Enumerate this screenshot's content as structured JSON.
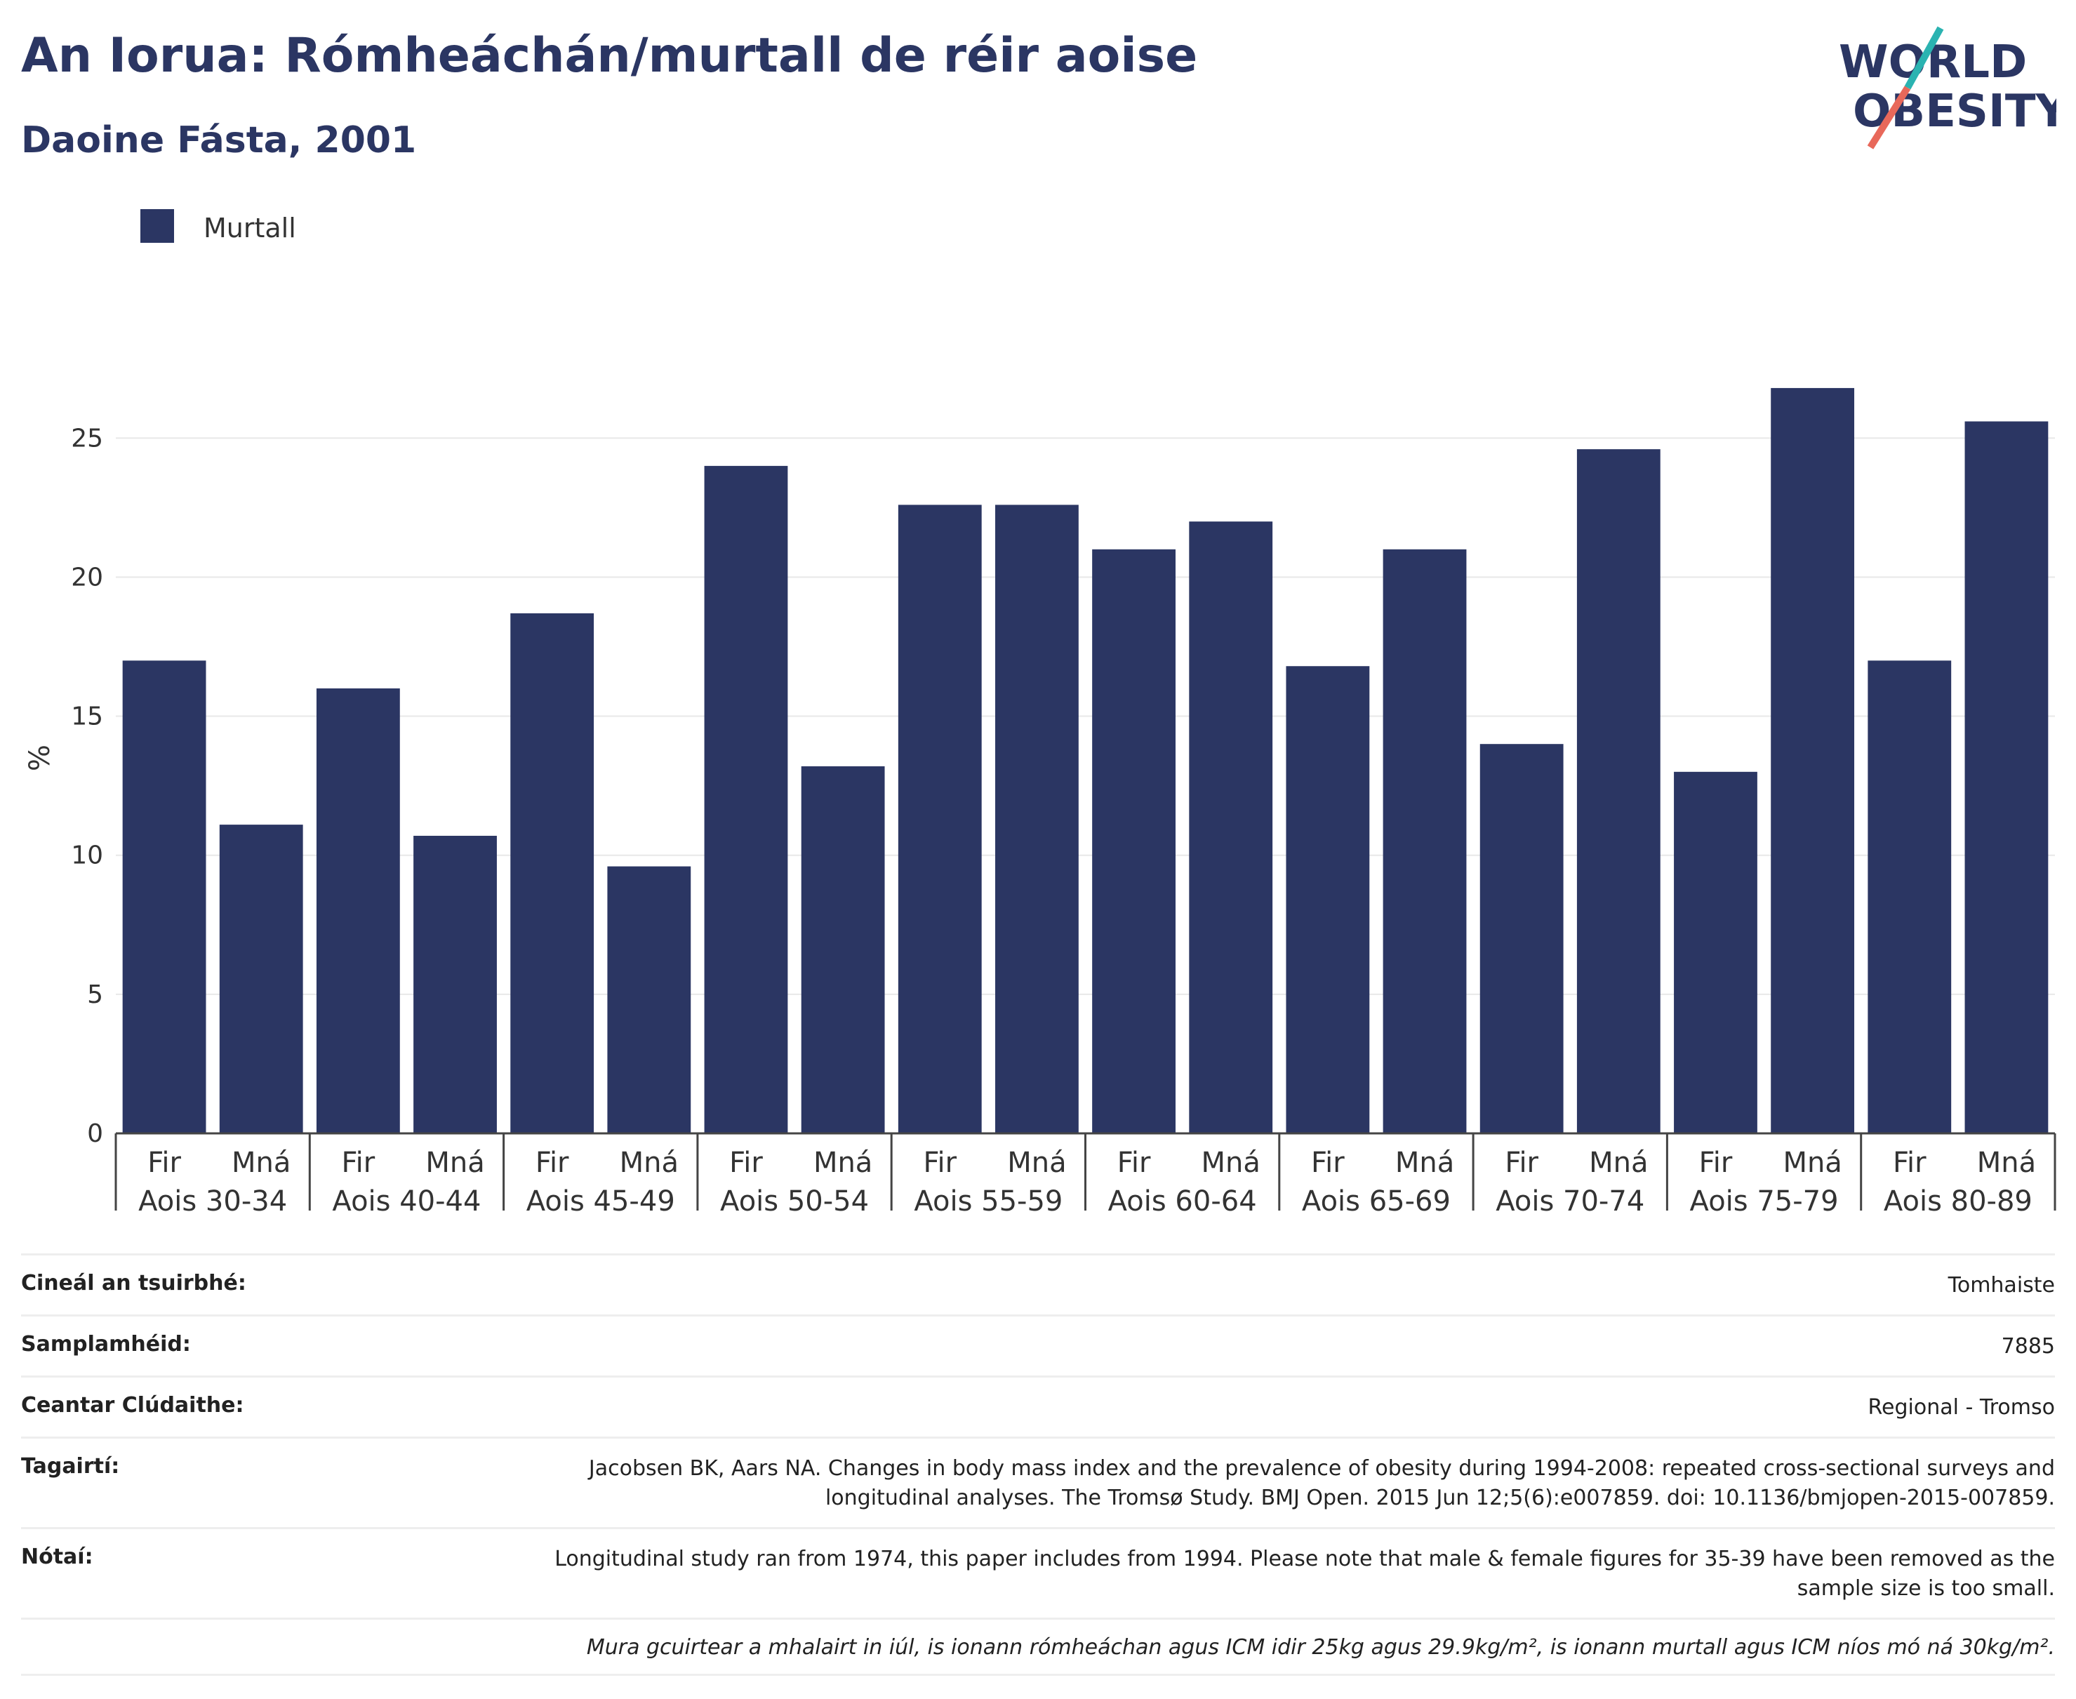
{
  "title": "An Iorua: Rómheáchán/murtall de réir aoise",
  "subtitle": "Daoine Fásta, 2001",
  "logo": {
    "line1": "WORLD",
    "line2": "OBESITY",
    "teal": "#2bb3b1",
    "coral": "#e8685a",
    "navy": "#2b3663"
  },
  "chart_data": {
    "type": "bar",
    "title": "An Iorua: Rómheáchán/murtall de réir aoise",
    "subtitle": "Daoine Fásta, 2001",
    "ylabel": "%",
    "xlabel": "",
    "ylim": [
      0,
      27
    ],
    "yticks": [
      0,
      5,
      10,
      15,
      20,
      25
    ],
    "grid": true,
    "legend_position": "top-left",
    "bar_color": "#2b3663",
    "groups": [
      "Aois 30-34",
      "Aois 40-44",
      "Aois 45-49",
      "Aois 50-54",
      "Aois 55-59",
      "Aois 60-64",
      "Aois 65-69",
      "Aois 70-74",
      "Aois 75-79",
      "Aois 80-89"
    ],
    "subcategories": [
      "Fir",
      "Mná"
    ],
    "series": [
      {
        "name": "Murtall",
        "values": [
          17.0,
          11.1,
          16.0,
          10.7,
          18.7,
          9.6,
          24.0,
          13.2,
          22.6,
          22.6,
          21.0,
          22.0,
          16.8,
          21.0,
          14.0,
          24.6,
          13.0,
          26.8,
          17.0,
          25.6
        ]
      }
    ]
  },
  "info": [
    {
      "label": "Cineál an tsuirbhé:",
      "value": "Tomhaiste"
    },
    {
      "label": "Samplamhéid:",
      "value": "7885"
    },
    {
      "label": "Ceantar Clúdaithe:",
      "value": "Regional - Tromso"
    },
    {
      "label": "Tagairtí:",
      "value": "Jacobsen BK, Aars NA. Changes in body mass index and the prevalence of obesity during 1994-2008: repeated cross-sectional surveys and longitudinal analyses. The Tromsø Study. BMJ Open. 2015 Jun 12;5(6):e007859. doi: 10.1136/bmjopen-2015-007859."
    },
    {
      "label": "Nótaí:",
      "value": "Longitudinal study ran from 1974, this paper includes from 1994. Please note that male & female figures for 35-39 have been removed as the sample size is too small."
    }
  ],
  "footnote": "Mura gcuirtear a mhalairt in iúl, is ionann rómheáchan agus ICM idir 25kg agus 29.9kg/m², is ionann murtall agus ICM níos mó ná 30kg/m²."
}
